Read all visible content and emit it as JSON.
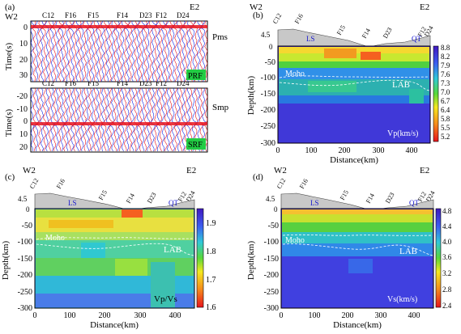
{
  "panel_a": {
    "letter": "(a)",
    "west": "W2",
    "east": "E2",
    "stations": [
      "C12",
      "F16",
      "F15",
      "F14",
      "D23",
      "F12",
      "D24"
    ],
    "ylabel": "Time(s)",
    "top": {
      "phase": "Pms",
      "tag": "PRF",
      "yticks": [
        "0",
        "10",
        "20",
        "30"
      ]
    },
    "bottom": {
      "phase": "Smp",
      "tag": "SRF",
      "yticks": [
        "-20",
        "-10",
        "0",
        "10",
        "20"
      ]
    }
  },
  "panels": [
    {
      "id": "b",
      "letter": "(b)",
      "west": "W2",
      "east": "E2",
      "stations": [
        "C12",
        "F16",
        "F15",
        "F14",
        "D23",
        "F12",
        "D24"
      ],
      "labels": {
        "ls": "LS",
        "qt": "QT",
        "moho": "Moho",
        "lab": "LAB"
      },
      "topo_ticks": [
        "4.5",
        "0"
      ],
      "yticks": [
        "-50",
        "-100",
        "-150",
        "-200",
        "-250",
        "-300"
      ],
      "xticks": [
        "0",
        "100",
        "200",
        "300",
        "400"
      ],
      "ylabel": "Depth(km)",
      "xlabel": "Distance(km)",
      "quantity": "Vp(km/s)",
      "colorbar": [
        "8.8",
        "8.2",
        "7.9",
        "7.6",
        "7.3",
        "7.0",
        "6.7",
        "6.4",
        "5.8",
        "5.5",
        "5.2"
      ]
    },
    {
      "id": "c",
      "letter": "(c)",
      "west": "W2",
      "east": "E2",
      "stations": [
        "C12",
        "F16",
        "F15",
        "F14",
        "D23",
        "F12",
        "D24"
      ],
      "labels": {
        "ls": "LS",
        "qt": "QT",
        "moho": "Moho",
        "lab": "LAB"
      },
      "topo_ticks": [
        "4.5",
        "0"
      ],
      "yticks": [
        "-50",
        "-100",
        "-150",
        "-200",
        "-250",
        "-300"
      ],
      "xticks": [
        "0",
        "100",
        "200",
        "300",
        "400"
      ],
      "ylabel": "Depth(km)",
      "xlabel": "Distance(km)",
      "quantity": "Vp/Vs",
      "colorbar": [
        "1.9",
        "1.8",
        "1.7",
        "1.6"
      ]
    },
    {
      "id": "d",
      "letter": "(d)",
      "west": "W2",
      "east": "E2",
      "stations": [
        "C12",
        "F16",
        "F15",
        "F14",
        "D23",
        "F12",
        "D24"
      ],
      "labels": {
        "ls": "LS",
        "qt": "QT",
        "moho": "Moho",
        "lab": "LAB"
      },
      "topo_ticks": [
        "4.5",
        "0"
      ],
      "yticks": [
        "-50",
        "-100",
        "-150",
        "-200",
        "-250",
        "-300"
      ],
      "xticks": [
        "0",
        "100",
        "200",
        "300",
        "400"
      ],
      "ylabel": "Depth(km)",
      "xlabel": "Distance(km)",
      "quantity": "Vs(km/s)",
      "colorbar": [
        "4.8",
        "4.4",
        "4.0",
        "3.6",
        "3.2",
        "2.8",
        "2.4"
      ]
    }
  ],
  "colors": {
    "wiggle_positive": "#e8141e",
    "wiggle_negative": "#1428e6",
    "tag_background": "#22cc44",
    "topo_fill": "#c8c8c8",
    "moho_line": "#ffffff",
    "label_blue": "#1818d0"
  }
}
